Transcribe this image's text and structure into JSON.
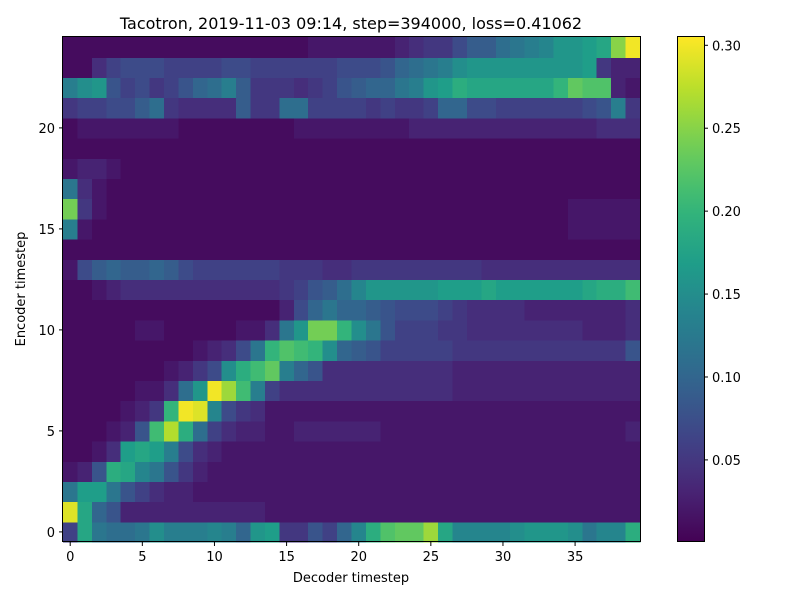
{
  "chart_data": {
    "type": "heatmap",
    "title": "Tacotron, 2019-11-03 09:14, step=394000, loss=0.41062",
    "xlabel": "Decoder timestep",
    "ylabel": "Encoder timestep",
    "xlim": [
      -0.5,
      39.5
    ],
    "ylim": [
      -0.5,
      24.5
    ],
    "x_ticks": [
      0,
      5,
      10,
      15,
      20,
      25,
      30,
      35
    ],
    "y_ticks": [
      0,
      5,
      10,
      15,
      20
    ],
    "colormap": "viridis",
    "colorbar": {
      "vmin": 0.0005,
      "vmax": 0.305,
      "ticks": [
        0.05,
        0.1,
        0.15,
        0.2,
        0.25,
        0.3
      ],
      "tick_labels": [
        "0.05",
        "0.10",
        "0.15",
        "0.20",
        "0.25",
        "0.30"
      ]
    },
    "rows": 25,
    "cols": 40,
    "values": [
      [
        0.06,
        0.18,
        0.12,
        0.11,
        0.11,
        0.12,
        0.15,
        0.13,
        0.13,
        0.13,
        0.14,
        0.13,
        0.1,
        0.16,
        0.17,
        0.05,
        0.05,
        0.08,
        0.06,
        0.1,
        0.14,
        0.19,
        0.22,
        0.23,
        0.23,
        0.26,
        0.18,
        0.14,
        0.14,
        0.14,
        0.14,
        0.15,
        0.16,
        0.16,
        0.16,
        0.15,
        0.12,
        0.14,
        0.14,
        0.19
      ],
      [
        0.29,
        0.18,
        0.1,
        0.08,
        0.03,
        0.03,
        0.03,
        0.03,
        0.03,
        0.03,
        0.03,
        0.03,
        0.03,
        0.03,
        0.02,
        0.02,
        0.02,
        0.02,
        0.02,
        0.02,
        0.02,
        0.02,
        0.02,
        0.02,
        0.02,
        0.02,
        0.02,
        0.02,
        0.02,
        0.02,
        0.02,
        0.02,
        0.02,
        0.02,
        0.02,
        0.02,
        0.02,
        0.02,
        0.02,
        0.02
      ],
      [
        0.12,
        0.17,
        0.17,
        0.12,
        0.08,
        0.06,
        0.04,
        0.03,
        0.03,
        0.02,
        0.02,
        0.02,
        0.02,
        0.02,
        0.02,
        0.02,
        0.02,
        0.02,
        0.02,
        0.02,
        0.02,
        0.02,
        0.02,
        0.02,
        0.02,
        0.02,
        0.02,
        0.02,
        0.02,
        0.02,
        0.02,
        0.02,
        0.02,
        0.02,
        0.02,
        0.02,
        0.02,
        0.02,
        0.02,
        0.02
      ],
      [
        0.02,
        0.03,
        0.08,
        0.19,
        0.18,
        0.14,
        0.12,
        0.08,
        0.05,
        0.03,
        0.02,
        0.02,
        0.02,
        0.02,
        0.02,
        0.02,
        0.02,
        0.02,
        0.02,
        0.02,
        0.02,
        0.02,
        0.02,
        0.02,
        0.02,
        0.02,
        0.02,
        0.02,
        0.02,
        0.02,
        0.02,
        0.02,
        0.02,
        0.02,
        0.02,
        0.02,
        0.02,
        0.02,
        0.02,
        0.02
      ],
      [
        0.01,
        0.01,
        0.02,
        0.04,
        0.17,
        0.18,
        0.17,
        0.13,
        0.07,
        0.04,
        0.03,
        0.02,
        0.02,
        0.02,
        0.02,
        0.02,
        0.02,
        0.02,
        0.02,
        0.02,
        0.02,
        0.02,
        0.02,
        0.02,
        0.02,
        0.02,
        0.02,
        0.02,
        0.02,
        0.02,
        0.02,
        0.02,
        0.02,
        0.02,
        0.02,
        0.02,
        0.02,
        0.02,
        0.02,
        0.02
      ],
      [
        0.01,
        0.01,
        0.01,
        0.02,
        0.03,
        0.08,
        0.21,
        0.27,
        0.19,
        0.11,
        0.06,
        0.04,
        0.03,
        0.03,
        0.02,
        0.02,
        0.03,
        0.03,
        0.03,
        0.03,
        0.03,
        0.03,
        0.02,
        0.02,
        0.02,
        0.02,
        0.02,
        0.02,
        0.02,
        0.02,
        0.02,
        0.02,
        0.02,
        0.02,
        0.02,
        0.02,
        0.02,
        0.02,
        0.02,
        0.03
      ],
      [
        0.01,
        0.01,
        0.01,
        0.01,
        0.02,
        0.03,
        0.05,
        0.2,
        0.3,
        0.29,
        0.14,
        0.07,
        0.05,
        0.04,
        0.02,
        0.02,
        0.02,
        0.02,
        0.02,
        0.02,
        0.02,
        0.02,
        0.02,
        0.02,
        0.02,
        0.02,
        0.02,
        0.02,
        0.02,
        0.02,
        0.02,
        0.02,
        0.02,
        0.02,
        0.02,
        0.02,
        0.02,
        0.02,
        0.02,
        0.02
      ],
      [
        0.01,
        0.01,
        0.01,
        0.01,
        0.01,
        0.02,
        0.02,
        0.04,
        0.11,
        0.16,
        0.3,
        0.26,
        0.21,
        0.13,
        0.06,
        0.04,
        0.04,
        0.04,
        0.04,
        0.04,
        0.04,
        0.04,
        0.04,
        0.04,
        0.04,
        0.04,
        0.04,
        0.03,
        0.03,
        0.03,
        0.03,
        0.03,
        0.03,
        0.03,
        0.03,
        0.03,
        0.03,
        0.03,
        0.03,
        0.03
      ],
      [
        0.01,
        0.01,
        0.01,
        0.01,
        0.01,
        0.01,
        0.01,
        0.02,
        0.03,
        0.05,
        0.07,
        0.15,
        0.19,
        0.21,
        0.23,
        0.13,
        0.1,
        0.08,
        0.04,
        0.04,
        0.04,
        0.04,
        0.04,
        0.04,
        0.04,
        0.04,
        0.04,
        0.03,
        0.03,
        0.03,
        0.03,
        0.03,
        0.03,
        0.03,
        0.03,
        0.03,
        0.03,
        0.03,
        0.03,
        0.03
      ],
      [
        0.01,
        0.01,
        0.01,
        0.01,
        0.01,
        0.01,
        0.01,
        0.01,
        0.01,
        0.02,
        0.03,
        0.04,
        0.07,
        0.12,
        0.2,
        0.22,
        0.21,
        0.2,
        0.15,
        0.1,
        0.09,
        0.08,
        0.06,
        0.06,
        0.06,
        0.06,
        0.06,
        0.05,
        0.05,
        0.05,
        0.05,
        0.05,
        0.05,
        0.05,
        0.05,
        0.05,
        0.05,
        0.05,
        0.05,
        0.08
      ],
      [
        0.01,
        0.01,
        0.01,
        0.01,
        0.01,
        0.02,
        0.02,
        0.01,
        0.01,
        0.01,
        0.01,
        0.01,
        0.02,
        0.02,
        0.04,
        0.12,
        0.16,
        0.24,
        0.24,
        0.2,
        0.15,
        0.12,
        0.08,
        0.06,
        0.06,
        0.06,
        0.05,
        0.05,
        0.04,
        0.04,
        0.04,
        0.04,
        0.04,
        0.04,
        0.04,
        0.04,
        0.03,
        0.03,
        0.03,
        0.04
      ],
      [
        0.01,
        0.01,
        0.01,
        0.01,
        0.01,
        0.01,
        0.01,
        0.01,
        0.01,
        0.01,
        0.01,
        0.01,
        0.01,
        0.01,
        0.01,
        0.03,
        0.07,
        0.1,
        0.12,
        0.1,
        0.1,
        0.09,
        0.08,
        0.07,
        0.07,
        0.07,
        0.06,
        0.05,
        0.04,
        0.04,
        0.04,
        0.04,
        0.03,
        0.03,
        0.03,
        0.03,
        0.03,
        0.03,
        0.03,
        0.04
      ],
      [
        0.01,
        0.01,
        0.02,
        0.03,
        0.04,
        0.04,
        0.04,
        0.04,
        0.04,
        0.04,
        0.04,
        0.04,
        0.04,
        0.04,
        0.04,
        0.05,
        0.06,
        0.08,
        0.09,
        0.11,
        0.14,
        0.16,
        0.16,
        0.16,
        0.16,
        0.16,
        0.17,
        0.17,
        0.17,
        0.18,
        0.17,
        0.17,
        0.17,
        0.17,
        0.17,
        0.17,
        0.18,
        0.19,
        0.19,
        0.21
      ],
      [
        0.02,
        0.07,
        0.09,
        0.1,
        0.09,
        0.09,
        0.1,
        0.09,
        0.07,
        0.06,
        0.06,
        0.06,
        0.06,
        0.06,
        0.06,
        0.05,
        0.05,
        0.05,
        0.04,
        0.04,
        0.05,
        0.05,
        0.05,
        0.05,
        0.05,
        0.05,
        0.05,
        0.05,
        0.05,
        0.04,
        0.04,
        0.04,
        0.04,
        0.04,
        0.04,
        0.04,
        0.04,
        0.04,
        0.04,
        0.04
      ],
      [
        0.01,
        0.01,
        0.01,
        0.01,
        0.01,
        0.01,
        0.01,
        0.01,
        0.01,
        0.01,
        0.01,
        0.01,
        0.01,
        0.01,
        0.01,
        0.01,
        0.01,
        0.01,
        0.01,
        0.01,
        0.01,
        0.01,
        0.01,
        0.01,
        0.01,
        0.01,
        0.01,
        0.01,
        0.01,
        0.01,
        0.01,
        0.01,
        0.01,
        0.01,
        0.01,
        0.01,
        0.01,
        0.01,
        0.01,
        0.01
      ],
      [
        0.13,
        0.02,
        0.01,
        0.01,
        0.01,
        0.01,
        0.01,
        0.01,
        0.01,
        0.01,
        0.01,
        0.01,
        0.01,
        0.01,
        0.01,
        0.01,
        0.01,
        0.01,
        0.01,
        0.01,
        0.01,
        0.01,
        0.01,
        0.01,
        0.01,
        0.01,
        0.01,
        0.01,
        0.01,
        0.01,
        0.01,
        0.01,
        0.01,
        0.01,
        0.01,
        0.02,
        0.02,
        0.02,
        0.02,
        0.02
      ],
      [
        0.24,
        0.05,
        0.02,
        0.01,
        0.01,
        0.01,
        0.01,
        0.01,
        0.01,
        0.01,
        0.01,
        0.01,
        0.01,
        0.01,
        0.01,
        0.01,
        0.01,
        0.01,
        0.01,
        0.01,
        0.01,
        0.01,
        0.01,
        0.01,
        0.01,
        0.01,
        0.01,
        0.01,
        0.01,
        0.01,
        0.01,
        0.01,
        0.01,
        0.01,
        0.01,
        0.02,
        0.02,
        0.02,
        0.02,
        0.02
      ],
      [
        0.12,
        0.04,
        0.02,
        0.01,
        0.01,
        0.01,
        0.01,
        0.01,
        0.01,
        0.01,
        0.01,
        0.01,
        0.01,
        0.01,
        0.01,
        0.01,
        0.01,
        0.01,
        0.01,
        0.01,
        0.01,
        0.01,
        0.01,
        0.01,
        0.01,
        0.01,
        0.01,
        0.01,
        0.01,
        0.01,
        0.01,
        0.01,
        0.01,
        0.01,
        0.01,
        0.01,
        0.01,
        0.01,
        0.01,
        0.01
      ],
      [
        0.02,
        0.03,
        0.03,
        0.02,
        0.01,
        0.01,
        0.01,
        0.01,
        0.01,
        0.01,
        0.01,
        0.01,
        0.01,
        0.01,
        0.01,
        0.01,
        0.01,
        0.01,
        0.01,
        0.01,
        0.01,
        0.01,
        0.01,
        0.01,
        0.01,
        0.01,
        0.01,
        0.01,
        0.01,
        0.01,
        0.01,
        0.01,
        0.01,
        0.01,
        0.01,
        0.01,
        0.01,
        0.01,
        0.01,
        0.01
      ],
      [
        0.01,
        0.01,
        0.01,
        0.01,
        0.01,
        0.01,
        0.01,
        0.01,
        0.01,
        0.01,
        0.01,
        0.01,
        0.01,
        0.01,
        0.01,
        0.01,
        0.01,
        0.01,
        0.01,
        0.01,
        0.01,
        0.01,
        0.01,
        0.01,
        0.01,
        0.01,
        0.01,
        0.01,
        0.01,
        0.01,
        0.01,
        0.01,
        0.01,
        0.01,
        0.01,
        0.01,
        0.01,
        0.01,
        0.01,
        0.01
      ],
      [
        0.01,
        0.02,
        0.02,
        0.02,
        0.02,
        0.02,
        0.02,
        0.02,
        0.01,
        0.01,
        0.01,
        0.01,
        0.01,
        0.01,
        0.01,
        0.01,
        0.02,
        0.02,
        0.02,
        0.02,
        0.02,
        0.02,
        0.02,
        0.02,
        0.03,
        0.03,
        0.03,
        0.03,
        0.03,
        0.03,
        0.03,
        0.03,
        0.03,
        0.03,
        0.03,
        0.03,
        0.03,
        0.04,
        0.04,
        0.04
      ],
      [
        0.05,
        0.06,
        0.06,
        0.07,
        0.07,
        0.09,
        0.11,
        0.05,
        0.04,
        0.04,
        0.04,
        0.04,
        0.09,
        0.05,
        0.05,
        0.11,
        0.11,
        0.06,
        0.06,
        0.06,
        0.06,
        0.05,
        0.06,
        0.05,
        0.05,
        0.06,
        0.1,
        0.1,
        0.07,
        0.07,
        0.06,
        0.06,
        0.06,
        0.06,
        0.06,
        0.06,
        0.07,
        0.08,
        0.13,
        0.05
      ],
      [
        0.13,
        0.15,
        0.16,
        0.08,
        0.06,
        0.07,
        0.05,
        0.06,
        0.08,
        0.1,
        0.11,
        0.13,
        0.09,
        0.05,
        0.05,
        0.05,
        0.04,
        0.05,
        0.06,
        0.08,
        0.09,
        0.1,
        0.1,
        0.12,
        0.13,
        0.16,
        0.17,
        0.19,
        0.18,
        0.18,
        0.18,
        0.18,
        0.18,
        0.18,
        0.2,
        0.23,
        0.22,
        0.22,
        0.03,
        0.02
      ],
      [
        0.01,
        0.01,
        0.04,
        0.06,
        0.07,
        0.07,
        0.07,
        0.06,
        0.06,
        0.06,
        0.06,
        0.07,
        0.07,
        0.06,
        0.06,
        0.06,
        0.06,
        0.06,
        0.06,
        0.07,
        0.07,
        0.07,
        0.08,
        0.1,
        0.11,
        0.12,
        0.13,
        0.15,
        0.16,
        0.16,
        0.16,
        0.16,
        0.16,
        0.16,
        0.16,
        0.16,
        0.17,
        0.05,
        0.03,
        0.03
      ],
      [
        0.01,
        0.01,
        0.01,
        0.01,
        0.01,
        0.01,
        0.01,
        0.01,
        0.01,
        0.01,
        0.01,
        0.01,
        0.01,
        0.01,
        0.01,
        0.01,
        0.01,
        0.02,
        0.02,
        0.02,
        0.02,
        0.02,
        0.02,
        0.03,
        0.04,
        0.05,
        0.05,
        0.07,
        0.09,
        0.09,
        0.11,
        0.12,
        0.13,
        0.14,
        0.16,
        0.16,
        0.17,
        0.18,
        0.25,
        0.3
      ]
    ]
  }
}
